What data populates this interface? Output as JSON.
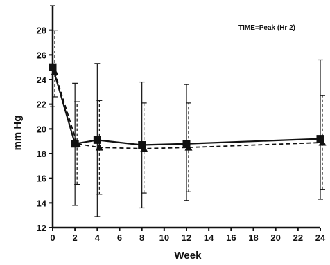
{
  "chart_data": {
    "type": "line",
    "annotation": "TIME=Peak (Hr 2)",
    "xlabel": "Week",
    "ylabel": "mm Hg",
    "xlim": [
      0,
      24
    ],
    "ylim": [
      12,
      30
    ],
    "x_ticks": [
      0,
      2,
      4,
      6,
      8,
      10,
      12,
      14,
      16,
      18,
      20,
      22,
      24
    ],
    "y_ticks": [
      12,
      14,
      16,
      18,
      20,
      22,
      24,
      26,
      28
    ],
    "grid": false,
    "legend": "none",
    "series": [
      {
        "style": "solid",
        "marker": "square",
        "color": "#111111",
        "x": [
          0,
          2,
          4,
          8,
          12,
          24
        ],
        "y": [
          25.0,
          18.8,
          19.1,
          18.7,
          18.8,
          19.2
        ],
        "err_low": [
          21.8,
          13.8,
          12.9,
          13.6,
          14.2,
          14.3
        ],
        "err_high": [
          30.0,
          23.7,
          25.3,
          23.8,
          23.6,
          25.6
        ]
      },
      {
        "style": "dashed",
        "marker": "triangle",
        "color": "#111111",
        "x": [
          0,
          2,
          4,
          8,
          12,
          24
        ],
        "y": [
          24.6,
          18.8,
          18.5,
          18.4,
          18.5,
          18.9
        ],
        "err_low": [
          22.6,
          15.5,
          14.7,
          14.8,
          14.9,
          15.1
        ],
        "err_high": [
          28.0,
          22.2,
          22.3,
          22.1,
          22.1,
          22.7
        ]
      }
    ]
  }
}
